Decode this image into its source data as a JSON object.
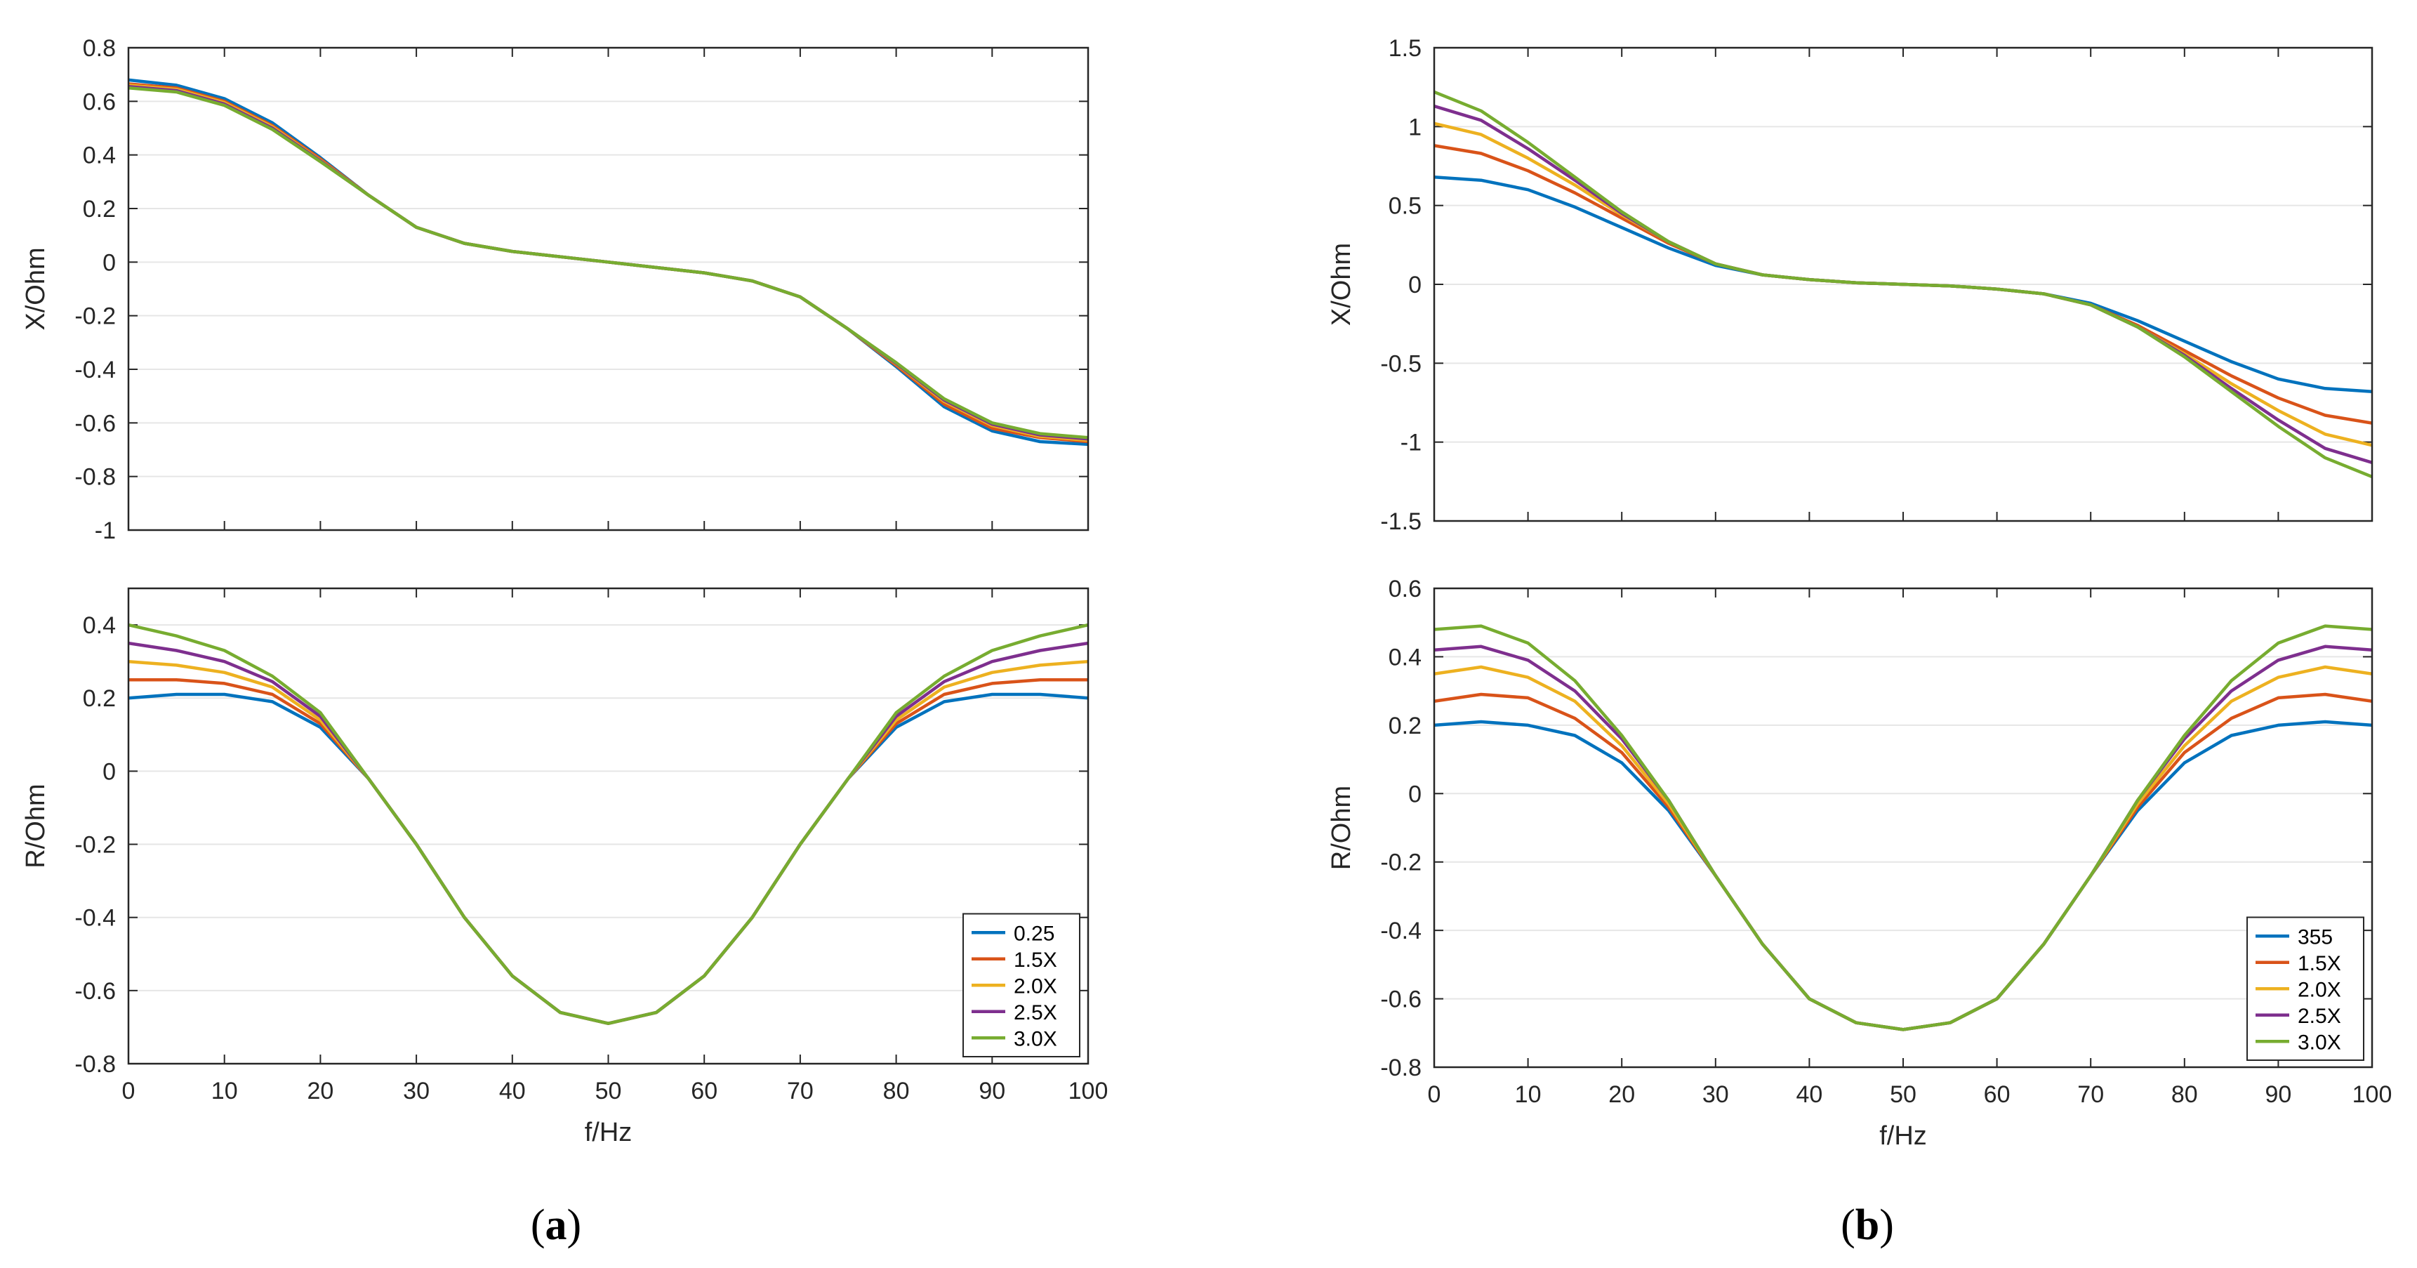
{
  "chart_data": [
    {
      "id": "a_top",
      "type": "line",
      "panel": "a",
      "position": "top",
      "ylabel": "X/Ohm",
      "xlabel": "",
      "xlim": [
        0,
        100
      ],
      "ylim": [
        -1,
        0.8
      ],
      "xticks": [
        0,
        10,
        20,
        30,
        40,
        50,
        60,
        70,
        80,
        90,
        100
      ],
      "yticks": [
        -1,
        -0.8,
        -0.6,
        -0.4,
        -0.2,
        0,
        0.2,
        0.4,
        0.6,
        0.8
      ],
      "yticklabels": [
        "-1",
        "-0.8",
        "-0.6",
        "-0.4",
        "-0.2",
        "0",
        "0.2",
        "0.4",
        "0.6",
        "0.8"
      ],
      "show_xticklabels": false,
      "grid": "y",
      "x": [
        0,
        5,
        10,
        15,
        20,
        25,
        30,
        35,
        40,
        45,
        50,
        55,
        60,
        65,
        70,
        75,
        80,
        85,
        90,
        95,
        100
      ],
      "series": [
        {
          "name": "0.25",
          "values": [
            0.68,
            0.66,
            0.61,
            0.52,
            0.39,
            0.25,
            0.13,
            0.07,
            0.04,
            0.02,
            0.0,
            -0.02,
            -0.04,
            -0.07,
            -0.13,
            -0.25,
            -0.39,
            -0.54,
            -0.63,
            -0.67,
            -0.68
          ]
        },
        {
          "name": "1.5X",
          "values": [
            0.665,
            0.65,
            0.6,
            0.51,
            0.385,
            0.25,
            0.13,
            0.07,
            0.04,
            0.02,
            0.0,
            -0.02,
            -0.04,
            -0.07,
            -0.13,
            -0.25,
            -0.385,
            -0.53,
            -0.62,
            -0.655,
            -0.67
          ]
        },
        {
          "name": "2.0X",
          "values": [
            0.66,
            0.645,
            0.595,
            0.505,
            0.38,
            0.25,
            0.13,
            0.07,
            0.04,
            0.02,
            0.0,
            -0.02,
            -0.04,
            -0.07,
            -0.13,
            -0.25,
            -0.38,
            -0.52,
            -0.61,
            -0.65,
            -0.665
          ]
        },
        {
          "name": "2.5X",
          "values": [
            0.655,
            0.64,
            0.59,
            0.5,
            0.378,
            0.25,
            0.13,
            0.07,
            0.04,
            0.02,
            0.0,
            -0.02,
            -0.04,
            -0.07,
            -0.13,
            -0.25,
            -0.378,
            -0.515,
            -0.605,
            -0.645,
            -0.66
          ]
        },
        {
          "name": "3.0X",
          "values": [
            0.65,
            0.635,
            0.585,
            0.495,
            0.375,
            0.25,
            0.13,
            0.07,
            0.04,
            0.02,
            0.0,
            -0.02,
            -0.04,
            -0.07,
            -0.13,
            -0.25,
            -0.375,
            -0.51,
            -0.6,
            -0.64,
            -0.655
          ]
        }
      ]
    },
    {
      "id": "a_bottom",
      "type": "line",
      "panel": "a",
      "position": "bottom",
      "ylabel": "R/Ohm",
      "xlabel": "f/Hz",
      "xlim": [
        0,
        100
      ],
      "ylim": [
        -0.8,
        0.5
      ],
      "xticks": [
        0,
        10,
        20,
        30,
        40,
        50,
        60,
        70,
        80,
        90,
        100
      ],
      "xticklabels": [
        "0",
        "10",
        "20",
        "30",
        "40",
        "50",
        "60",
        "70",
        "80",
        "90",
        "100"
      ],
      "yticks": [
        -0.8,
        -0.6,
        -0.4,
        -0.2,
        0,
        0.2,
        0.4
      ],
      "yticklabels": [
        "-0.8",
        "-0.6",
        "-0.4",
        "-0.2",
        "0",
        "0.2",
        "0.4"
      ],
      "show_xticklabels": true,
      "grid": "y",
      "legend": {
        "location": "bottom-right",
        "labels": [
          "0.25",
          "1.5X",
          "2.0X",
          "2.5X",
          "3.0X"
        ]
      },
      "x": [
        0,
        5,
        10,
        15,
        20,
        25,
        30,
        35,
        40,
        45,
        50,
        55,
        60,
        65,
        70,
        75,
        80,
        85,
        90,
        95,
        100
      ],
      "series": [
        {
          "name": "0.25",
          "values": [
            0.2,
            0.21,
            0.21,
            0.19,
            0.12,
            -0.02,
            -0.2,
            -0.4,
            -0.56,
            -0.66,
            -0.69,
            -0.66,
            -0.56,
            -0.4,
            -0.2,
            -0.02,
            0.12,
            0.19,
            0.21,
            0.21,
            0.2
          ]
        },
        {
          "name": "1.5X",
          "values": [
            0.25,
            0.25,
            0.24,
            0.21,
            0.13,
            -0.02,
            -0.2,
            -0.4,
            -0.56,
            -0.66,
            -0.69,
            -0.66,
            -0.56,
            -0.4,
            -0.2,
            -0.02,
            0.13,
            0.21,
            0.24,
            0.25,
            0.25
          ]
        },
        {
          "name": "2.0X",
          "values": [
            0.3,
            0.29,
            0.27,
            0.23,
            0.14,
            -0.02,
            -0.2,
            -0.4,
            -0.56,
            -0.66,
            -0.69,
            -0.66,
            -0.56,
            -0.4,
            -0.2,
            -0.02,
            0.14,
            0.23,
            0.27,
            0.29,
            0.3
          ]
        },
        {
          "name": "2.5X",
          "values": [
            0.35,
            0.33,
            0.3,
            0.245,
            0.15,
            -0.02,
            -0.2,
            -0.4,
            -0.56,
            -0.66,
            -0.69,
            -0.66,
            -0.56,
            -0.4,
            -0.2,
            -0.02,
            0.15,
            0.245,
            0.3,
            0.33,
            0.35
          ]
        },
        {
          "name": "3.0X",
          "values": [
            0.4,
            0.37,
            0.33,
            0.26,
            0.16,
            -0.02,
            -0.2,
            -0.4,
            -0.56,
            -0.66,
            -0.69,
            -0.66,
            -0.56,
            -0.4,
            -0.2,
            -0.02,
            0.16,
            0.26,
            0.33,
            0.37,
            0.4
          ]
        }
      ]
    },
    {
      "id": "b_top",
      "type": "line",
      "panel": "b",
      "position": "top",
      "ylabel": "X/Ohm",
      "xlabel": "",
      "xlim": [
        0,
        100
      ],
      "ylim": [
        -1.5,
        1.5
      ],
      "xticks": [
        0,
        10,
        20,
        30,
        40,
        50,
        60,
        70,
        80,
        90,
        100
      ],
      "yticks": [
        -1.5,
        -1,
        -0.5,
        0,
        0.5,
        1,
        1.5
      ],
      "yticklabels": [
        "-1.5",
        "-1",
        "-0.5",
        "0",
        "0.5",
        "1",
        "1.5"
      ],
      "show_xticklabels": false,
      "grid": "y",
      "x": [
        0,
        5,
        10,
        15,
        20,
        25,
        30,
        35,
        40,
        45,
        50,
        55,
        60,
        65,
        70,
        75,
        80,
        85,
        90,
        95,
        100
      ],
      "series": [
        {
          "name": "355",
          "values": [
            0.68,
            0.66,
            0.6,
            0.49,
            0.36,
            0.23,
            0.12,
            0.06,
            0.03,
            0.01,
            0.0,
            -0.01,
            -0.03,
            -0.06,
            -0.12,
            -0.23,
            -0.36,
            -0.49,
            -0.6,
            -0.66,
            -0.68
          ]
        },
        {
          "name": "1.5X",
          "values": [
            0.88,
            0.83,
            0.72,
            0.58,
            0.42,
            0.26,
            0.13,
            0.06,
            0.03,
            0.01,
            0.0,
            -0.01,
            -0.03,
            -0.06,
            -0.13,
            -0.26,
            -0.42,
            -0.58,
            -0.72,
            -0.83,
            -0.88
          ]
        },
        {
          "name": "2.0X",
          "values": [
            1.02,
            0.95,
            0.8,
            0.63,
            0.44,
            0.27,
            0.13,
            0.06,
            0.03,
            0.01,
            0.0,
            -0.01,
            -0.03,
            -0.06,
            -0.13,
            -0.27,
            -0.44,
            -0.63,
            -0.8,
            -0.95,
            -1.02
          ]
        },
        {
          "name": "2.5X",
          "values": [
            1.13,
            1.04,
            0.86,
            0.66,
            0.45,
            0.27,
            0.13,
            0.06,
            0.03,
            0.01,
            0.0,
            -0.01,
            -0.03,
            -0.06,
            -0.13,
            -0.27,
            -0.45,
            -0.66,
            -0.86,
            -1.04,
            -1.13
          ]
        },
        {
          "name": "3.0X",
          "values": [
            1.22,
            1.1,
            0.9,
            0.68,
            0.46,
            0.27,
            0.13,
            0.06,
            0.03,
            0.01,
            0.0,
            -0.01,
            -0.03,
            -0.06,
            -0.13,
            -0.27,
            -0.46,
            -0.68,
            -0.9,
            -1.1,
            -1.22
          ]
        }
      ]
    },
    {
      "id": "b_bottom",
      "type": "line",
      "panel": "b",
      "position": "bottom",
      "ylabel": "R/Ohm",
      "xlabel": "f/Hz",
      "xlim": [
        0,
        100
      ],
      "ylim": [
        -0.8,
        0.6
      ],
      "xticks": [
        0,
        10,
        20,
        30,
        40,
        50,
        60,
        70,
        80,
        90,
        100
      ],
      "xticklabels": [
        "0",
        "10",
        "20",
        "30",
        "40",
        "50",
        "60",
        "70",
        "80",
        "90",
        "100"
      ],
      "yticks": [
        -0.8,
        -0.6,
        -0.4,
        -0.2,
        0,
        0.2,
        0.4,
        0.6
      ],
      "yticklabels": [
        "-0.8",
        "-0.6",
        "-0.4",
        "-0.2",
        "0",
        "0.2",
        "0.4",
        "0.6"
      ],
      "show_xticklabels": true,
      "grid": "y",
      "legend": {
        "location": "bottom-right",
        "labels": [
          "355",
          "1.5X",
          "2.0X",
          "2.5X",
          "3.0X"
        ]
      },
      "x": [
        0,
        5,
        10,
        15,
        20,
        25,
        30,
        35,
        40,
        45,
        50,
        55,
        60,
        65,
        70,
        75,
        80,
        85,
        90,
        95,
        100
      ],
      "series": [
        {
          "name": "355",
          "values": [
            0.2,
            0.21,
            0.2,
            0.17,
            0.09,
            -0.05,
            -0.24,
            -0.44,
            -0.6,
            -0.67,
            -0.69,
            -0.67,
            -0.6,
            -0.44,
            -0.24,
            -0.05,
            0.09,
            0.17,
            0.2,
            0.21,
            0.2
          ]
        },
        {
          "name": "1.5X",
          "values": [
            0.27,
            0.29,
            0.28,
            0.22,
            0.12,
            -0.04,
            -0.24,
            -0.44,
            -0.6,
            -0.67,
            -0.69,
            -0.67,
            -0.6,
            -0.44,
            -0.24,
            -0.04,
            0.12,
            0.22,
            0.28,
            0.29,
            0.27
          ]
        },
        {
          "name": "2.0X",
          "values": [
            0.35,
            0.37,
            0.34,
            0.27,
            0.14,
            -0.03,
            -0.24,
            -0.44,
            -0.6,
            -0.67,
            -0.69,
            -0.67,
            -0.6,
            -0.44,
            -0.24,
            -0.03,
            0.14,
            0.27,
            0.34,
            0.37,
            0.35
          ]
        },
        {
          "name": "2.5X",
          "values": [
            0.42,
            0.43,
            0.39,
            0.3,
            0.16,
            -0.02,
            -0.24,
            -0.44,
            -0.6,
            -0.67,
            -0.69,
            -0.67,
            -0.6,
            -0.44,
            -0.24,
            -0.02,
            0.16,
            0.3,
            0.39,
            0.43,
            0.42
          ]
        },
        {
          "name": "3.0X",
          "values": [
            0.48,
            0.49,
            0.44,
            0.33,
            0.17,
            -0.02,
            -0.24,
            -0.44,
            -0.6,
            -0.67,
            -0.69,
            -0.67,
            -0.6,
            -0.44,
            -0.24,
            -0.02,
            0.17,
            0.33,
            0.44,
            0.49,
            0.48
          ]
        }
      ]
    }
  ],
  "colors": [
    "#0072BD",
    "#D95319",
    "#EDB120",
    "#7E2F8E",
    "#77AC30"
  ],
  "captions": {
    "a_letter": "a",
    "b_letter": "b"
  }
}
